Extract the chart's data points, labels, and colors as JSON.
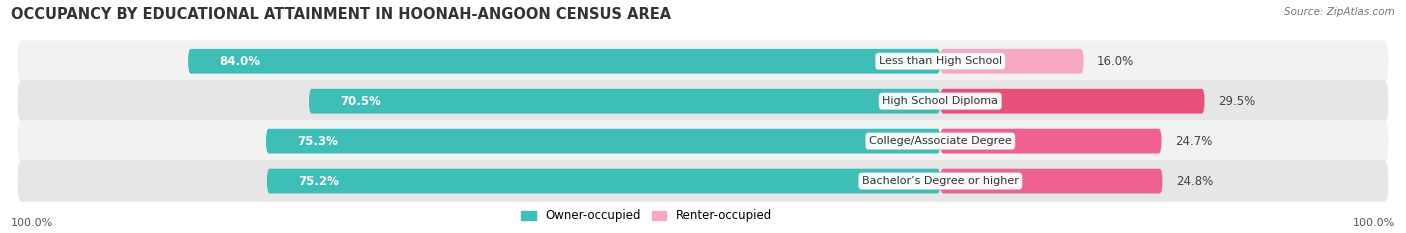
{
  "title": "OCCUPANCY BY EDUCATIONAL ATTAINMENT IN HOONAH-ANGOON CENSUS AREA",
  "source": "Source: ZipAtlas.com",
  "categories": [
    "Less than High School",
    "High School Diploma",
    "College/Associate Degree",
    "Bachelor’s Degree or higher"
  ],
  "owner_pct": [
    84.0,
    70.5,
    75.3,
    75.2
  ],
  "renter_pct": [
    16.0,
    29.5,
    24.7,
    24.8
  ],
  "owner_color": "#3dbfb8",
  "renter_color_light": "#f5a8c0",
  "renter_color_dark": "#f06090",
  "renter_colors": [
    "#f5a8c0",
    "#e8507a",
    "#f06090",
    "#f06090"
  ],
  "row_bg_color_light": "#f2f2f2",
  "row_bg_color_dark": "#e6e6e6",
  "legend_owner": "Owner-occupied",
  "legend_renter": "Renter-occupied",
  "title_fontsize": 10.5,
  "bar_label_fontsize": 8.5,
  "category_fontsize": 8,
  "legend_fontsize": 8.5,
  "axis_label": "100.0%"
}
